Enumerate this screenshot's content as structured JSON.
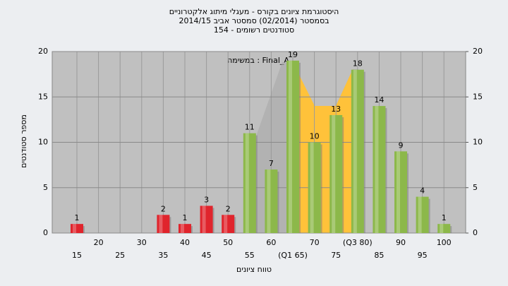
{
  "chart_data": {
    "type": "bar",
    "title": "היסטוגרמת ציונים בקורס - מעגלי מיתוג אלקטרוניים",
    "subtitle": "בסמסטר  (02/2014)  סמסטר אביב 2014/15",
    "subtitle2": "סטודנטים רשומים - 154",
    "annotation": "במשימה : Final_A",
    "x_label": "טווח ציונים",
    "y_label": "מספר סטודנטים",
    "categories": [
      "15",
      "20",
      "25",
      "30",
      "35",
      "40",
      "45",
      "50",
      "55",
      "60",
      "(Q1 65)",
      "70",
      "75",
      "(Q3 80)",
      "85",
      "90",
      "95",
      "100"
    ],
    "values": [
      1,
      0,
      0,
      0,
      2,
      1,
      3,
      2,
      11,
      7,
      19,
      10,
      13,
      18,
      14,
      9,
      4,
      1
    ],
    "colors": [
      "#e0242c",
      "#e0242c",
      "#e0242c",
      "#e0242c",
      "#e0242c",
      "#e0242c",
      "#e0242c",
      "#e0242c",
      "#8cb84a",
      "#8cb84a",
      "#8cb84a",
      "#8cb84a",
      "#8cb84a",
      "#8cb84a",
      "#8cb84a",
      "#8cb84a",
      "#8cb84a",
      "#8cb84a"
    ],
    "ylim": [
      0,
      20
    ],
    "yticks": [
      0,
      5,
      10,
      15,
      20
    ],
    "y2lim": [
      0,
      20
    ],
    "y2ticks": [
      0,
      5,
      10,
      15,
      20
    ],
    "grid": true
  }
}
